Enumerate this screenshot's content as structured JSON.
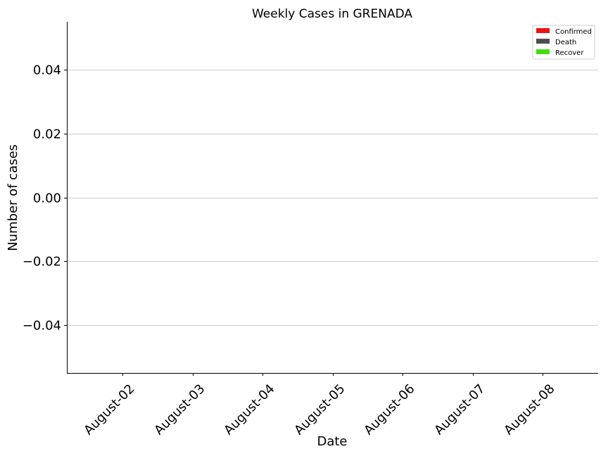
{
  "chart_data": {
    "type": "bar",
    "title": "Weekly Cases in GRENADA",
    "xlabel": "Date",
    "ylabel": "Number of cases",
    "categories": [
      "August-02",
      "August-03",
      "August-04",
      "August-05",
      "August-06",
      "August-07",
      "August-08"
    ],
    "series": [
      {
        "name": "Confirmed",
        "color": "#ee1111",
        "values": [
          0,
          0,
          0,
          0,
          0,
          0,
          0
        ]
      },
      {
        "name": "Death",
        "color": "#4d4d4d",
        "values": [
          0,
          0,
          0,
          0,
          0,
          0,
          0
        ]
      },
      {
        "name": "Recover",
        "color": "#44dd11",
        "values": [
          0,
          0,
          0,
          0,
          0,
          0,
          0
        ]
      }
    ],
    "ylim": [
      -0.055,
      0.055
    ],
    "yticks": [
      0.04,
      0.02,
      0.0,
      -0.02,
      -0.04
    ],
    "ytick_labels": [
      "0.04",
      "0.02",
      "0.00",
      "−0.02",
      "−0.04"
    ],
    "grid": "horizontal",
    "legend_position": "top-right"
  }
}
